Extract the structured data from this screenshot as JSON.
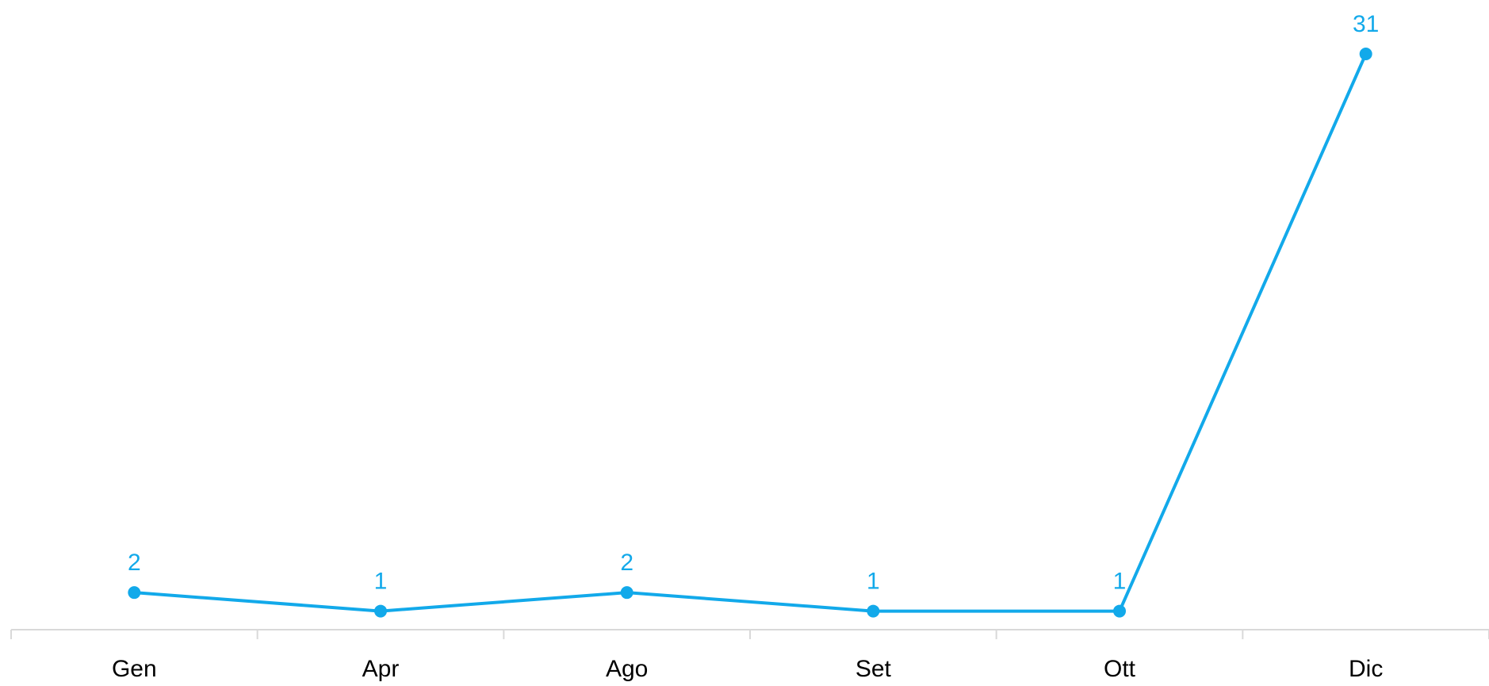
{
  "chart_data": {
    "type": "line",
    "categories": [
      "Gen",
      "Apr",
      "Ago",
      "Set",
      "Ott",
      "Dic"
    ],
    "series": [
      {
        "color": "#12a9ea",
        "values": [
          2,
          1,
          2,
          1,
          1,
          31
        ]
      }
    ],
    "ylim": [
      0,
      35
    ],
    "data_labels": true
  }
}
